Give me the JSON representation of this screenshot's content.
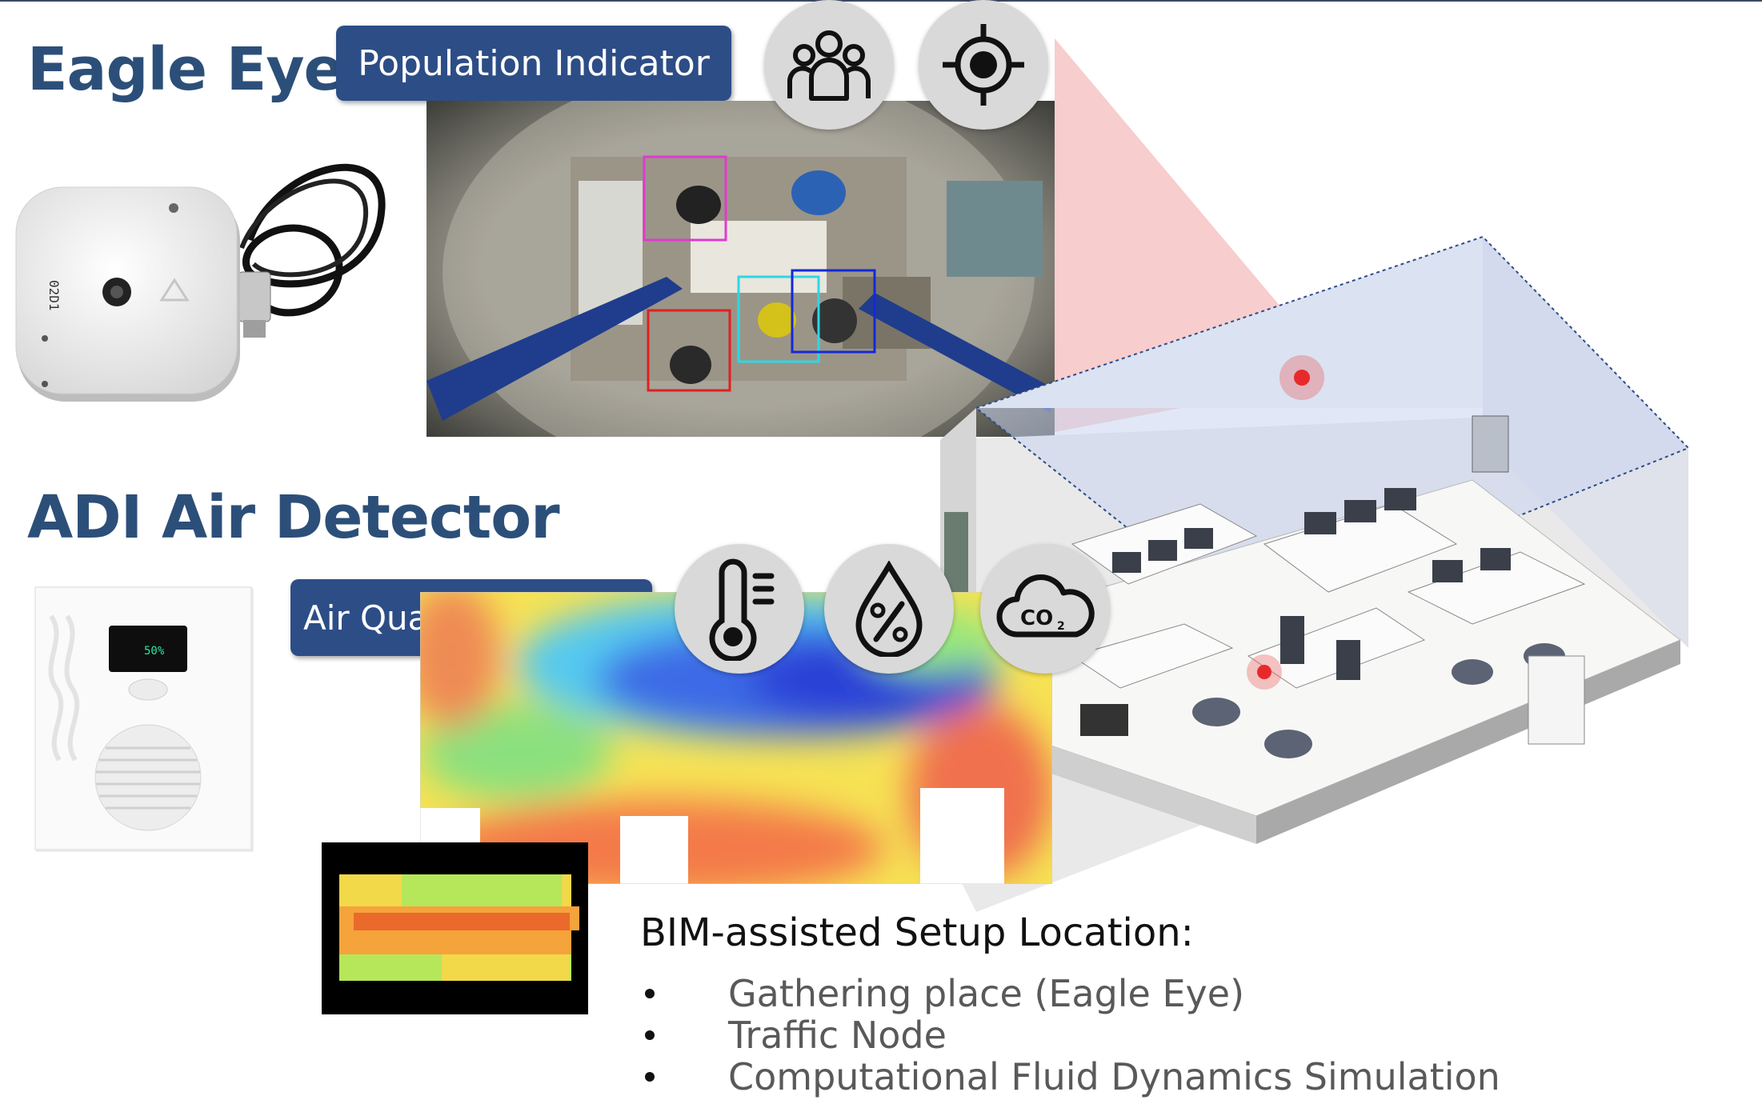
{
  "eagle_eye": {
    "title": "Eagle Eye",
    "device_label": "02D1"
  },
  "population_indicator": {
    "label": "Population Indicator",
    "icons": [
      "people-group-icon",
      "target-icon"
    ]
  },
  "air_detector": {
    "title": "ADI Air Detector",
    "display_reading": "50%"
  },
  "air_quality_indicator": {
    "label": "Air Quality Indicator",
    "icons": [
      "thermometer-icon",
      "humidity-percent-icon",
      "co2-cloud-icon"
    ]
  },
  "bim": {
    "heading": "BIM-assisted Setup Location:",
    "items": [
      "Gathering place (Eagle Eye)",
      "Traffic Node",
      "Computational Fluid Dynamics Simulation"
    ]
  },
  "colors": {
    "title": "#2c4f79",
    "pill": "#2d4d86",
    "icon_bg": "#d9d9d9",
    "sensor_dot": "#e8292b"
  }
}
